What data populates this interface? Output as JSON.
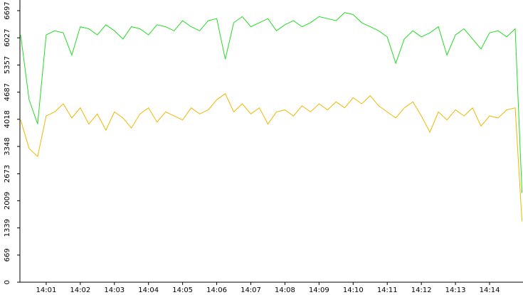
{
  "chart_data": {
    "type": "line",
    "x": [
      0.25,
      0.5,
      0.75,
      1,
      1.25,
      1.5,
      1.75,
      2,
      2.25,
      2.5,
      2.75,
      3,
      3.25,
      3.5,
      3.75,
      4,
      4.25,
      4.5,
      4.75,
      5,
      5.25,
      5.5,
      5.75,
      6,
      6.25,
      6.5,
      6.75,
      7,
      7.25,
      7.5,
      7.75,
      8,
      8.25,
      8.5,
      8.75,
      9,
      9.25,
      9.5,
      9.75,
      10,
      10.25,
      10.5,
      10.75,
      11,
      11.25,
      11.5,
      11.75,
      12,
      12.25,
      12.5,
      12.75,
      13,
      13.25,
      13.5,
      13.75,
      14,
      14.25,
      14.5,
      14.75,
      14.95
    ],
    "series": [
      {
        "color": "#22dd22",
        "values": [
          6100,
          4500,
          3900,
          6100,
          6200,
          6150,
          5600,
          6300,
          6250,
          6100,
          6350,
          6200,
          6000,
          6300,
          6250,
          6100,
          6350,
          6300,
          6200,
          6450,
          6300,
          6200,
          6450,
          6500,
          5500,
          6400,
          6550,
          6300,
          6400,
          6500,
          6200,
          6350,
          6450,
          6300,
          6400,
          6550,
          6500,
          6450,
          6650,
          6600,
          6400,
          6300,
          6200,
          6050,
          5400,
          6000,
          6200,
          6050,
          6150,
          6300,
          5600,
          6100,
          6250,
          6000,
          5750,
          6150,
          6200,
          6050,
          6250,
          2200
        ]
      },
      {
        "color": "#f0b800",
        "values": [
          4000,
          3300,
          3100,
          4100,
          4200,
          4400,
          4050,
          4300,
          3900,
          4150,
          3750,
          4200,
          4050,
          3800,
          4150,
          4300,
          3950,
          4200,
          4100,
          4000,
          4300,
          4150,
          4250,
          4500,
          4650,
          4200,
          4400,
          4150,
          4300,
          3900,
          4200,
          4250,
          4100,
          4350,
          4200,
          4400,
          4250,
          4450,
          4300,
          4550,
          4400,
          4600,
          4350,
          4200,
          4050,
          4300,
          4450,
          4100,
          3700,
          4200,
          4000,
          4250,
          4100,
          4300,
          3850,
          4100,
          4050,
          4250,
          4300,
          1500
        ]
      }
    ],
    "xlim": [
      0.23,
      14.98
    ],
    "xticks": [
      {
        "value": 1,
        "label": "14:01"
      },
      {
        "value": 2,
        "label": "14:02"
      },
      {
        "value": 3,
        "label": "14:03"
      },
      {
        "value": 4,
        "label": "14:04"
      },
      {
        "value": 5,
        "label": "14:05"
      },
      {
        "value": 6,
        "label": "14:06"
      },
      {
        "value": 7,
        "label": "14:07"
      },
      {
        "value": 8,
        "label": "14:08"
      },
      {
        "value": 9,
        "label": "14:09"
      },
      {
        "value": 10,
        "label": "14:10"
      },
      {
        "value": 11,
        "label": "14:11"
      },
      {
        "value": 12,
        "label": "14:12"
      },
      {
        "value": 13,
        "label": "14:13"
      },
      {
        "value": 14,
        "label": "14:14"
      }
    ],
    "ylim": [
      0,
      6697
    ],
    "yticks": [
      0,
      669,
      1339,
      2009,
      2673,
      3348,
      4018,
      4687,
      5357,
      6027,
      6697
    ]
  }
}
